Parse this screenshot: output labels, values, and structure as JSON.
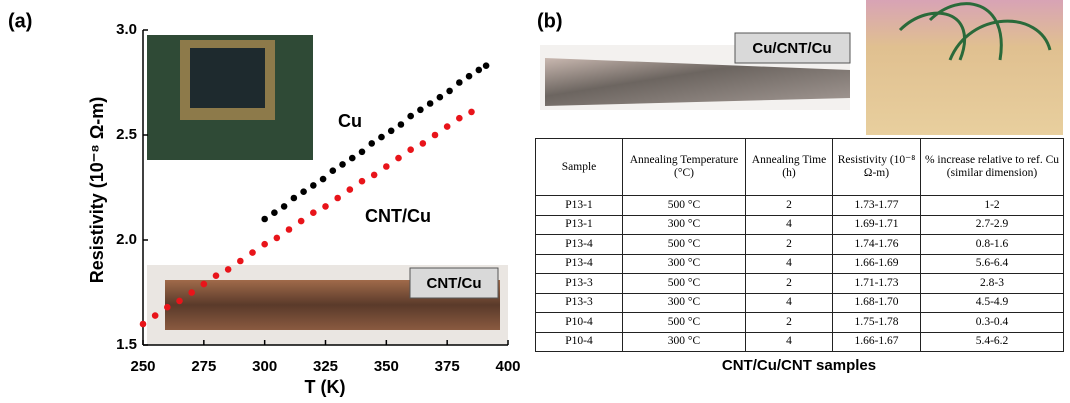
{
  "chart_data": {
    "type": "scatter",
    "xlabel": "T (K)",
    "ylabel": "Resistivity (10⁻⁸ Ω-m)",
    "xlim": [
      250,
      400
    ],
    "xticks": [
      250,
      275,
      300,
      325,
      350,
      375,
      400
    ],
    "ylim": [
      1.5,
      3.0
    ],
    "yticks": [
      1.5,
      {
        "value": 2,
        "label": "2.0"
      },
      2.5,
      {
        "value": 3,
        "label": "3.0"
      }
    ],
    "series": [
      {
        "name": "Cu",
        "color": "#000000",
        "x": [
          300,
          304,
          308,
          312,
          316,
          320,
          324,
          328,
          332,
          336,
          340,
          344,
          348,
          352,
          356,
          360,
          364,
          368,
          372,
          376,
          380,
          384,
          388,
          391
        ],
        "values": [
          2.1,
          2.13,
          2.16,
          2.2,
          2.23,
          2.26,
          2.29,
          2.33,
          2.36,
          2.39,
          2.42,
          2.46,
          2.49,
          2.52,
          2.55,
          2.59,
          2.62,
          2.65,
          2.68,
          2.71,
          2.75,
          2.78,
          2.81,
          2.83
        ]
      },
      {
        "name": "CNT/Cu",
        "color": "#e8141a",
        "x": [
          250,
          255,
          260,
          265,
          270,
          275,
          280,
          285,
          290,
          295,
          300,
          305,
          310,
          315,
          320,
          325,
          330,
          335,
          340,
          345,
          350,
          355,
          360,
          365,
          370,
          375,
          380,
          385
        ],
        "values": [
          1.6,
          1.64,
          1.68,
          1.71,
          1.75,
          1.79,
          1.83,
          1.86,
          1.9,
          1.94,
          1.98,
          2.01,
          2.05,
          2.09,
          2.13,
          2.16,
          2.2,
          2.24,
          2.28,
          2.31,
          2.35,
          2.39,
          2.43,
          2.46,
          2.5,
          2.54,
          2.58,
          2.61
        ]
      }
    ]
  },
  "panel_labels": [
    "(a)",
    "(b)"
  ],
  "photo_labels": [
    "CNT/Cu",
    "Cu/CNT/Cu"
  ],
  "table": {
    "header": [
      "Sample",
      "Annealing Temperature (°C)",
      "Annealing Time (h)",
      "Resistivity (10⁻⁸ Ω-m)",
      "% increase relative to ref. Cu (similar dimension)"
    ],
    "rows": [
      [
        "P13-1",
        "500 °C",
        "2",
        "1.73-1.77",
        "1-2"
      ],
      [
        "P13-1",
        "300 °C",
        "4",
        "1.69-1.71",
        "2.7-2.9"
      ],
      [
        "P13-4",
        "500 °C",
        "2",
        "1.74-1.76",
        "0.8-1.6"
      ],
      [
        "P13-4",
        "300 °C",
        "4",
        "1.66-1.69",
        "5.6-6.4"
      ],
      [
        "P13-3",
        "500 °C",
        "2",
        "1.71-1.73",
        "2.8-3"
      ],
      [
        "P13-3",
        "300 °C",
        "4",
        "1.68-1.70",
        "4.5-4.9"
      ],
      [
        "P10-4",
        "500 °C",
        "2",
        "1.75-1.78",
        "0.3-0.4"
      ],
      [
        "P10-4",
        "300 °C",
        "4",
        "1.66-1.67",
        "5.4-6.2"
      ]
    ],
    "caption": "CNT/Cu/CNT samples"
  }
}
